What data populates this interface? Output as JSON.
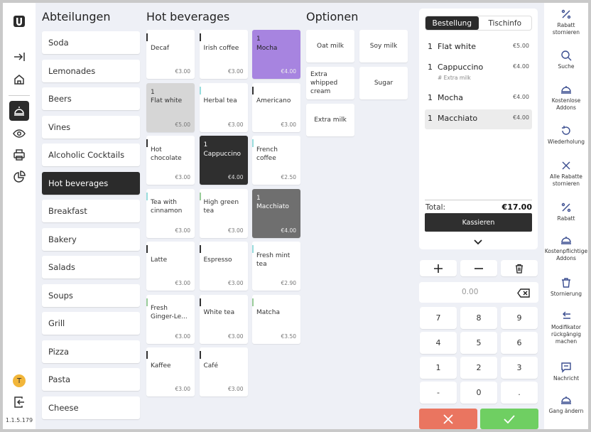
{
  "sidebar": {
    "version": "1.1.5.179",
    "avatar_initial": "T",
    "icons": [
      "logo-icon",
      "expand-icon",
      "home-icon",
      "service-bell-icon",
      "eye-icon",
      "printer-icon",
      "pie-chart-icon",
      "logout-icon"
    ]
  },
  "categories": {
    "title": "Abteilungen",
    "items": [
      "Soda",
      "Lemonades",
      "Beers",
      "Vines",
      "Alcoholic Cocktails",
      "Hot beverages",
      "Breakfast",
      "Bakery",
      "Salads",
      "Soups",
      "Grill",
      "Pizza",
      "Pasta",
      "Cheese"
    ],
    "selected": "Hot beverages"
  },
  "products": {
    "title": "Hot beverages",
    "items": [
      {
        "name": "Decaf",
        "price": "€3.00",
        "qty": "",
        "state": "default"
      },
      {
        "name": "Irish coffee",
        "price": "€3.00",
        "qty": "",
        "state": "default"
      },
      {
        "name": "Mocha",
        "price": "€4.00",
        "qty": "1",
        "state": "purple"
      },
      {
        "name": "Flat white",
        "price": "€5.00",
        "qty": "1",
        "state": "lightgray"
      },
      {
        "name": "Herbal tea",
        "price": "€3.00",
        "qty": "",
        "state": "default"
      },
      {
        "name": "Americano",
        "price": "€3.00",
        "qty": "",
        "state": "default"
      },
      {
        "name": "Hot chocolate",
        "price": "€3.00",
        "qty": "",
        "state": "default"
      },
      {
        "name": "Cappuccino",
        "price": "€4.00",
        "qty": "1",
        "state": "dark"
      },
      {
        "name": "French coffee",
        "price": "€2.50",
        "qty": "",
        "state": "default"
      },
      {
        "name": "Tea with cinnamon",
        "price": "€3.00",
        "qty": "",
        "state": "default"
      },
      {
        "name": "High green tea",
        "price": "€3.00",
        "qty": "",
        "state": "default"
      },
      {
        "name": "Macchiato",
        "price": "€4.00",
        "qty": "1",
        "state": "midgray"
      },
      {
        "name": "Latte",
        "price": "€3.00",
        "qty": "",
        "state": "default"
      },
      {
        "name": "Espresso",
        "price": "€3.00",
        "qty": "",
        "state": "default"
      },
      {
        "name": "Fresh mint tea",
        "price": "€2.90",
        "qty": "",
        "state": "default"
      },
      {
        "name": "Fresh Ginger-Le...",
        "price": "€3.00",
        "qty": "",
        "state": "default"
      },
      {
        "name": "White tea",
        "price": "€3.00",
        "qty": "",
        "state": "default"
      },
      {
        "name": "Matcha",
        "price": "€3.50",
        "qty": "",
        "state": "default"
      },
      {
        "name": "Kaffee",
        "price": "€3.00",
        "qty": "",
        "state": "default"
      },
      {
        "name": "Café",
        "price": "€3.00",
        "qty": "",
        "state": "default"
      }
    ]
  },
  "options": {
    "title": "Optionen",
    "items": [
      "Oat milk",
      "Soy milk",
      "Extra whipped cream",
      "Sugar",
      "Extra milk"
    ]
  },
  "order": {
    "tab_order": "Bestellung",
    "tab_table": "Tischinfo",
    "lines": [
      {
        "qty": "1",
        "name": "Flat white",
        "price": "€5.00",
        "modifier": ""
      },
      {
        "qty": "1",
        "name": "Cappuccino",
        "price": "€4.00",
        "modifier": "# Extra milk"
      },
      {
        "qty": "1",
        "name": "Mocha",
        "price": "€4.00",
        "modifier": ""
      },
      {
        "qty": "1",
        "name": "Macchiato",
        "price": "€4.00",
        "modifier": ""
      }
    ],
    "total_label": "Total:",
    "total_value": "€17.00",
    "pay_label": "Kassieren"
  },
  "keypad": {
    "display": "0.00",
    "keys": [
      "7",
      "8",
      "9",
      "4",
      "5",
      "6",
      "1",
      "2",
      "3",
      "-",
      "0",
      "."
    ]
  },
  "actions": [
    {
      "label": "Rabatt stornieren",
      "icon": "percent-icon"
    },
    {
      "label": "Suche",
      "icon": "search-icon"
    },
    {
      "label": "Kostenlose Addons",
      "icon": "free-addon-icon"
    },
    {
      "label": "Wiederholung",
      "icon": "repeat-icon"
    },
    {
      "label": "Alle Rabatte stornieren",
      "icon": "close-icon"
    },
    {
      "label": "Rabatt",
      "icon": "percent-icon"
    },
    {
      "label": "Kostenpflichtige Addons",
      "icon": "paid-addon-icon"
    },
    {
      "label": "Stornierung",
      "icon": "trash-icon"
    },
    {
      "label": "Modifikator rückgängig machen",
      "icon": "undo-icon"
    },
    {
      "label": "Nachricht",
      "icon": "message-icon"
    },
    {
      "label": "Gang ändern",
      "icon": "course-icon"
    }
  ]
}
